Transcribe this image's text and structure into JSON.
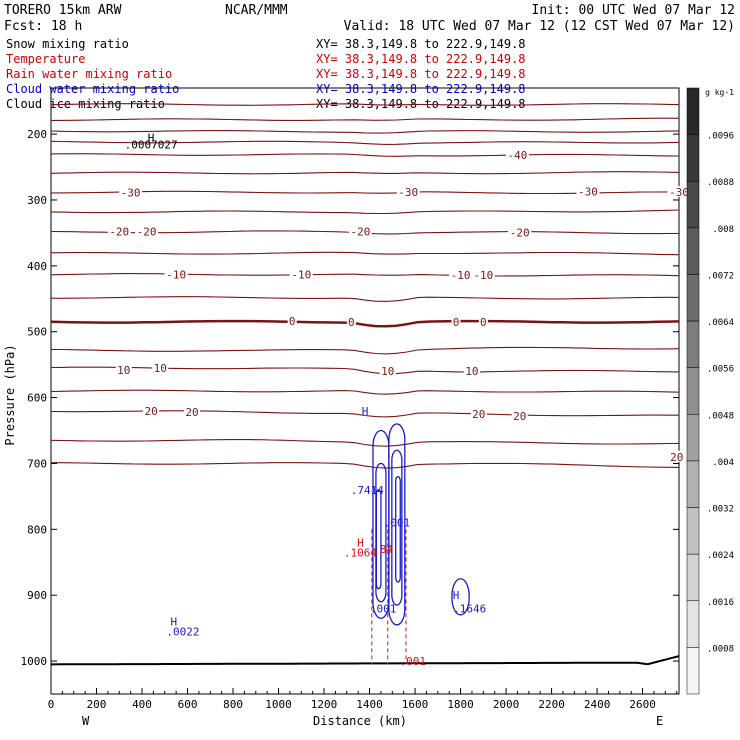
{
  "header": {
    "model_line": "TORERO  15km ARW",
    "org": "NCAR/MMM",
    "init": "Init: 00 UTC Wed 07 Mar 12",
    "fcst": "Fcst:   18 h",
    "valid": "Valid: 18 UTC Wed 07 Mar 12 (12 CST Wed 07 Mar 12)"
  },
  "legend": [
    {
      "name": "Snow mixing ratio",
      "xy": "XY=  38.3,149.8 to 222.9,149.8",
      "color": "#000000",
      "xy_color": "#000000"
    },
    {
      "name": "Temperature",
      "xy": "XY=  38.3,149.8 to 222.9,149.8",
      "color": "#cc0000",
      "xy_color": "#cc0000"
    },
    {
      "name": "Rain water mixing ratio",
      "xy": "XY=  38.3,149.8 to 222.9,149.8",
      "color": "#cc0000",
      "xy_color": "#cc0000"
    },
    {
      "name": "Cloud water mixing ratio",
      "xy": "XY=  38.3,149.8 to 222.9,149.8",
      "color": "#0000cc",
      "xy_color": "#0000cc"
    },
    {
      "name": "Cloud ice mixing ratio",
      "xy": "XY=  38.3,149.8 to 222.9,149.8",
      "color": "#000000",
      "xy_color": "#000000"
    }
  ],
  "colors": {
    "temperature": "#7a1414",
    "cloud_water": "#1a1acc",
    "rain": "#dd1111",
    "terrain": "#000000"
  },
  "chart_data": {
    "type": "contour",
    "xlabel": "Distance (km)",
    "ylabel": "Pressure (hPa)",
    "xlim": [
      0,
      2760
    ],
    "ylim": [
      1050,
      130
    ],
    "x_ticks": [
      0,
      200,
      400,
      600,
      800,
      1000,
      1200,
      1400,
      1600,
      1800,
      2000,
      2200,
      2400,
      2600
    ],
    "x_tick_labels": [
      "0",
      "200",
      "400",
      "600",
      "800",
      "1000",
      "1200",
      "1400",
      "1600",
      "1800",
      "2000",
      "2200",
      "2400",
      "2600"
    ],
    "y_ticks": [
      200,
      300,
      400,
      500,
      600,
      700,
      800,
      900,
      1000
    ],
    "y_tick_labels": [
      "200",
      "300",
      "400",
      "500",
      "600",
      "700",
      "800",
      "900",
      "1000"
    ],
    "x_end_labels": {
      "left": "W",
      "right": "E"
    },
    "temperature_isotherms": [
      {
        "value": -60,
        "p": [
          155,
          155,
          155,
          155
        ]
      },
      {
        "value": -55,
        "p": [
          178,
          178,
          178,
          177
        ]
      },
      {
        "value": -50,
        "p": [
          195,
          196,
          196,
          196
        ]
      },
      {
        "value": -45,
        "p": [
          212,
          212,
          213,
          212
        ]
      },
      {
        "value": -40,
        "p": [
          231,
          231,
          232,
          232
        ]
      },
      {
        "value": -35,
        "p": [
          259,
          259,
          259,
          258
        ]
      },
      {
        "value": -30,
        "p": [
          288,
          288,
          289,
          289
        ]
      },
      {
        "value": -25,
        "p": [
          318,
          318,
          318,
          316
        ]
      },
      {
        "value": -20,
        "p": [
          349,
          348,
          349,
          350
        ]
      },
      {
        "value": -15,
        "p": [
          381,
          381,
          380,
          382
        ]
      },
      {
        "value": -10,
        "p": [
          413,
          413,
          414,
          415
        ]
      },
      {
        "value": -5,
        "p": [
          448,
          448,
          449,
          449
        ]
      },
      {
        "value": 0,
        "p": [
          485,
          485,
          485,
          485
        ]
      },
      {
        "value": 5,
        "p": [
          528,
          529,
          525,
          525
        ]
      },
      {
        "value": 10,
        "p": [
          555,
          555,
          560,
          560
        ]
      },
      {
        "value": 15,
        "p": [
          590,
          590,
          590,
          592
        ]
      },
      {
        "value": 20,
        "p": [
          620,
          622,
          625,
          628
        ]
      },
      {
        "value": 25,
        "p": [
          665,
          665,
          668,
          670
        ]
      },
      {
        "value": 30,
        "p": [
          700,
          700,
          700,
          705
        ]
      }
    ],
    "isotherm_labels": [
      {
        "text": "-40",
        "x": 2050,
        "p": 232
      },
      {
        "text": "-30",
        "x": 350,
        "p": 289
      },
      {
        "text": "-30",
        "x": 1570,
        "p": 288
      },
      {
        "text": "-30",
        "x": 2360,
        "p": 287
      },
      {
        "text": "-30",
        "x": 2760,
        "p": 288
      },
      {
        "text": "-20",
        "x": 300,
        "p": 348
      },
      {
        "text": "-20",
        "x": 420,
        "p": 348
      },
      {
        "text": "-20",
        "x": 1360,
        "p": 348
      },
      {
        "text": "-20",
        "x": 2060,
        "p": 349
      },
      {
        "text": "-10",
        "x": 550,
        "p": 413
      },
      {
        "text": "-10",
        "x": 1100,
        "p": 413
      },
      {
        "text": "-10",
        "x": 1800,
        "p": 414
      },
      {
        "text": "-10",
        "x": 1900,
        "p": 414
      },
      {
        "text": "0",
        "x": 1060,
        "p": 484
      },
      {
        "text": "0",
        "x": 1320,
        "p": 485
      },
      {
        "text": "0",
        "x": 1780,
        "p": 485
      },
      {
        "text": "0",
        "x": 1900,
        "p": 485
      },
      {
        "text": "10",
        "x": 320,
        "p": 558
      },
      {
        "text": "10",
        "x": 480,
        "p": 555
      },
      {
        "text": "10",
        "x": 1480,
        "p": 560
      },
      {
        "text": "10",
        "x": 1850,
        "p": 560
      },
      {
        "text": "20",
        "x": 440,
        "p": 620
      },
      {
        "text": "20",
        "x": 620,
        "p": 622
      },
      {
        "text": "20",
        "x": 1880,
        "p": 625
      },
      {
        "text": "20",
        "x": 2060,
        "p": 628
      },
      {
        "text": "20",
        "x": 2750,
        "p": 690
      }
    ],
    "cloud_water_labels": [
      {
        "text": "H",
        "x": 1380,
        "p": 620
      },
      {
        "text": ".7414",
        "x": 1390,
        "p": 740
      },
      {
        "text": "H",
        "x": 1780,
        "p": 900
      },
      {
        "text": ".1646",
        "x": 1840,
        "p": 920
      },
      {
        "text": "H",
        "x": 540,
        "p": 940
      },
      {
        "text": ".0022",
        "x": 580,
        "p": 955
      },
      {
        "text": ".001",
        "x": 1520,
        "p": 790
      },
      {
        "text": ".001",
        "x": 1460,
        "p": 920
      }
    ],
    "rain_labels": [
      {
        "text": "H",
        "x": 1360,
        "p": 820
      },
      {
        "text": ".1064",
        "x": 1360,
        "p": 835
      },
      {
        "text": ".84",
        "x": 1460,
        "p": 830
      },
      {
        "text": ".001",
        "x": 1590,
        "p": 1000
      }
    ],
    "snow_labels": [
      {
        "text": "H",
        "x": 440,
        "p": 205
      },
      {
        "text": ".0007027",
        "x": 440,
        "p": 216
      }
    ],
    "colorbar": {
      "unit": "g kg-1",
      "ticks": [
        ".0096",
        ".0088",
        ".008",
        ".0072",
        ".0064",
        ".0056",
        ".0048",
        ".004",
        ".0032",
        ".0024",
        ".0016",
        ".0008"
      ]
    }
  }
}
